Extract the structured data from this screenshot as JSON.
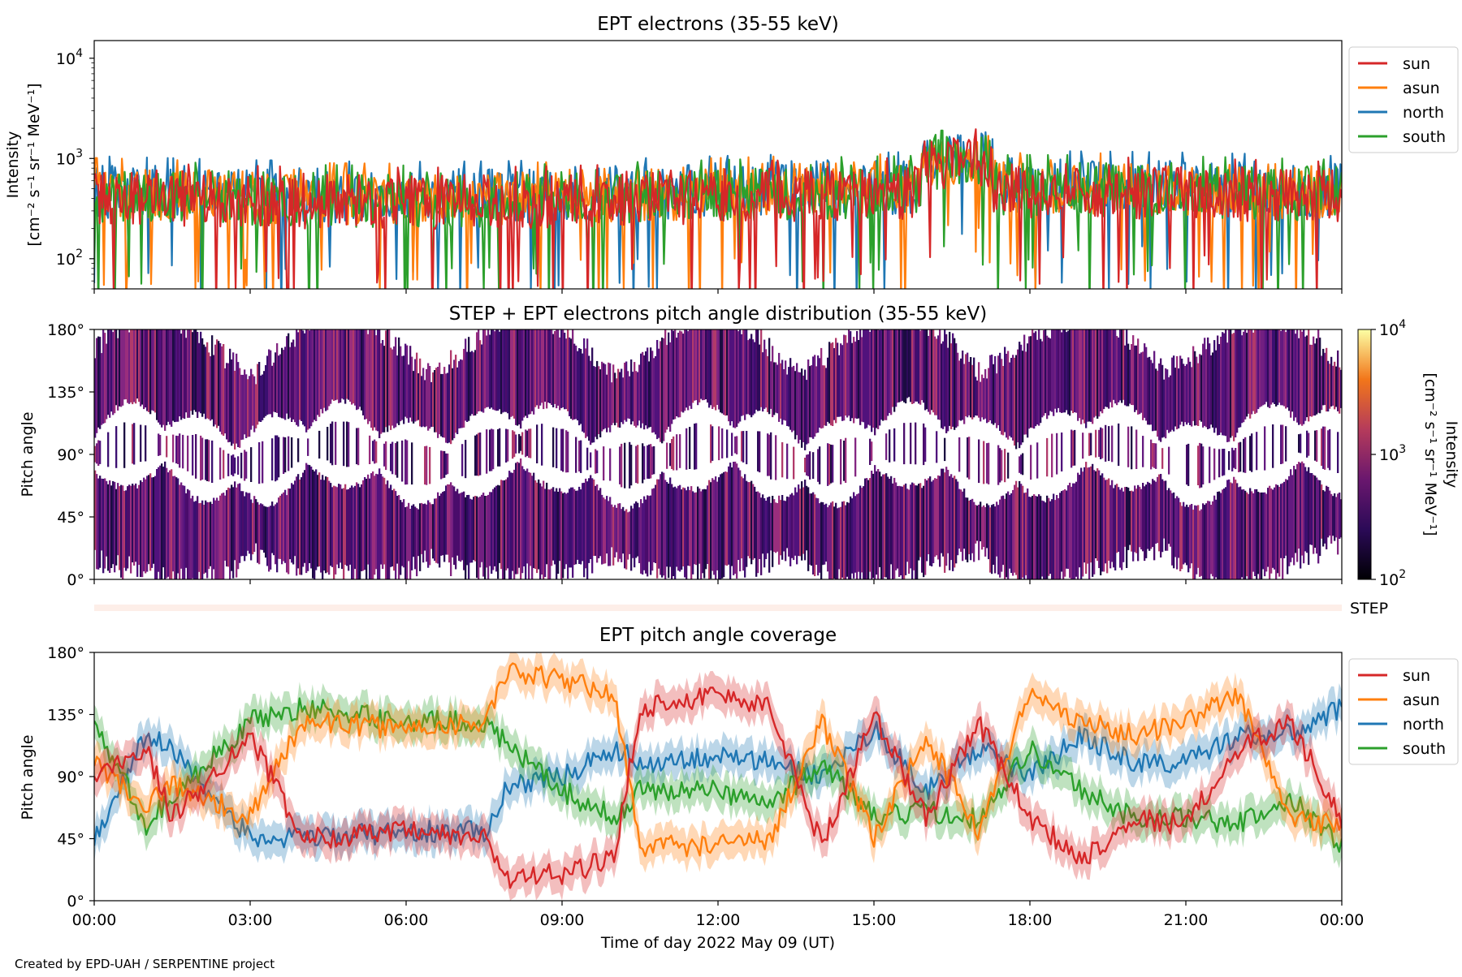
{
  "colors": {
    "sun": "#d62728",
    "asun": "#ff7f0e",
    "north": "#1f77b4",
    "south": "#2ca02c",
    "step_bar": "#fdeee8"
  },
  "xaxis": {
    "ticks": [
      "00:00",
      "03:00",
      "06:00",
      "09:00",
      "12:00",
      "15:00",
      "18:00",
      "21:00",
      "00:00"
    ],
    "label": "Time of day 2022 May 09 (UT)"
  },
  "credit": "Created by EPD-UAH / SERPENTINE project",
  "chart_data": [
    {
      "type": "line",
      "title": "EPT electrons (35-55 keV)",
      "ylabel_line1": "Intensity",
      "ylabel_line2": "[cm⁻² s⁻¹ sr⁻¹ MeV⁻¹]",
      "yscale": "log",
      "ylim": [
        50,
        15000
      ],
      "yticks": [
        {
          "base": "10",
          "exp": "2",
          "value": 100
        },
        {
          "base": "10",
          "exp": "3",
          "value": 1000
        },
        {
          "base": "10",
          "exp": "4",
          "value": 10000
        }
      ],
      "legend_position": "outside-right",
      "series": [
        {
          "name": "sun",
          "key": "sun",
          "typical": 420
        },
        {
          "name": "asun",
          "key": "asun",
          "typical": 460
        },
        {
          "name": "north",
          "key": "north",
          "typical": 480
        },
        {
          "name": "south",
          "key": "south",
          "typical": 440
        }
      ],
      "features": {
        "event_peak_hour": 16.3,
        "event_peak_value": 1900
      }
    },
    {
      "type": "heatmap",
      "title": "STEP + EPT electrons pitch angle distribution (35-55 keV)",
      "ylabel": "Pitch angle",
      "ylim": [
        0,
        180
      ],
      "yticks": [
        "0°",
        "45°",
        "90°",
        "135°",
        "180°"
      ],
      "colorbar": {
        "label_line1": "Intensity",
        "label_line2": "[cm⁻² s⁻¹ sr⁻¹ MeV⁻¹]",
        "scale": "log",
        "range": [
          100,
          10000
        ],
        "ticks": [
          {
            "base": "10",
            "exp": "2"
          },
          {
            "base": "10",
            "exp": "3"
          },
          {
            "base": "10",
            "exp": "4"
          }
        ]
      },
      "step_label": "STEP"
    },
    {
      "type": "line",
      "title": "EPT pitch angle coverage",
      "ylabel": "Pitch angle",
      "ylim": [
        0,
        180
      ],
      "yticks": [
        "0°",
        "45°",
        "90°",
        "135°",
        "180°"
      ],
      "xlim_hours": [
        0,
        24
      ],
      "legend_position": "outside-right",
      "series": [
        {
          "name": "sun",
          "key": "sun",
          "hours": [
            0,
            1,
            1.5,
            3,
            4,
            6,
            7.5,
            8,
            9,
            10,
            10.5,
            12,
            13,
            14,
            15,
            16,
            17,
            18,
            19,
            20,
            21,
            22,
            23,
            24
          ],
          "values": [
            90,
            110,
            60,
            120,
            45,
            50,
            45,
            15,
            20,
            30,
            140,
            150,
            140,
            40,
            135,
            60,
            130,
            60,
            30,
            60,
            55,
            110,
            130,
            60
          ]
        },
        {
          "name": "asun",
          "key": "asun",
          "hours": [
            0,
            1,
            1.5,
            3,
            4,
            6,
            7.5,
            8,
            9,
            10,
            10.5,
            12,
            13,
            14,
            15,
            16,
            17,
            18,
            19,
            20,
            21,
            22,
            23,
            24
          ],
          "values": [
            100,
            70,
            85,
            60,
            130,
            125,
            130,
            165,
            160,
            150,
            40,
            40,
            45,
            130,
            45,
            120,
            50,
            150,
            130,
            120,
            130,
            150,
            60,
            55
          ]
        },
        {
          "name": "north",
          "key": "north",
          "hours": [
            0,
            1,
            1.5,
            3,
            4,
            6,
            7.5,
            8,
            9,
            10,
            10.5,
            12,
            13,
            14,
            15,
            16,
            17,
            18,
            19,
            20,
            21,
            22,
            23,
            24
          ],
          "values": [
            45,
            120,
            110,
            45,
            45,
            50,
            50,
            85,
            90,
            110,
            100,
            105,
            100,
            90,
            125,
            80,
            110,
            90,
            120,
            100,
            100,
            120,
            120,
            140
          ]
        },
        {
          "name": "south",
          "key": "south",
          "hours": [
            0,
            1,
            1.5,
            3,
            4,
            6,
            7.5,
            8,
            9,
            10,
            10.5,
            12,
            13,
            14,
            15,
            16,
            17,
            18,
            19,
            20,
            21,
            22,
            23,
            24
          ],
          "values": [
            130,
            55,
            75,
            130,
            140,
            130,
            130,
            110,
            80,
            60,
            80,
            80,
            70,
            100,
            60,
            65,
            60,
            110,
            80,
            60,
            60,
            55,
            75,
            40
          ]
        }
      ]
    }
  ]
}
